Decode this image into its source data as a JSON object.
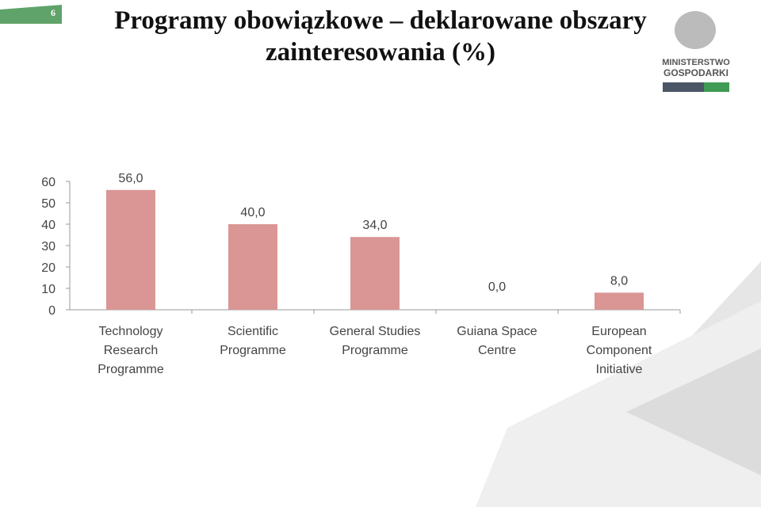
{
  "slide_number": "6",
  "logo": {
    "line1": "MINISTERSTWO",
    "line2": "GOSPODARKI"
  },
  "chart_data": {
    "type": "bar",
    "title": "Programy obowiązkowe – deklarowane obszary zainteresowania (%)",
    "categories": [
      [
        "Technology",
        "Research",
        "Programme"
      ],
      [
        "Scientific",
        "Programme"
      ],
      [
        "General Studies",
        "Programme"
      ],
      [
        "Guiana Space",
        "Centre"
      ],
      [
        "European",
        "Component",
        "Initiative"
      ]
    ],
    "values": [
      56,
      40,
      34,
      0,
      8
    ],
    "value_labels": [
      "56,0",
      "40,0",
      "34,0",
      "0,0",
      "8,0"
    ],
    "color": "#d99694",
    "ylim": [
      0,
      60
    ],
    "yticks": [
      0,
      10,
      20,
      30,
      40,
      50,
      60
    ]
  }
}
